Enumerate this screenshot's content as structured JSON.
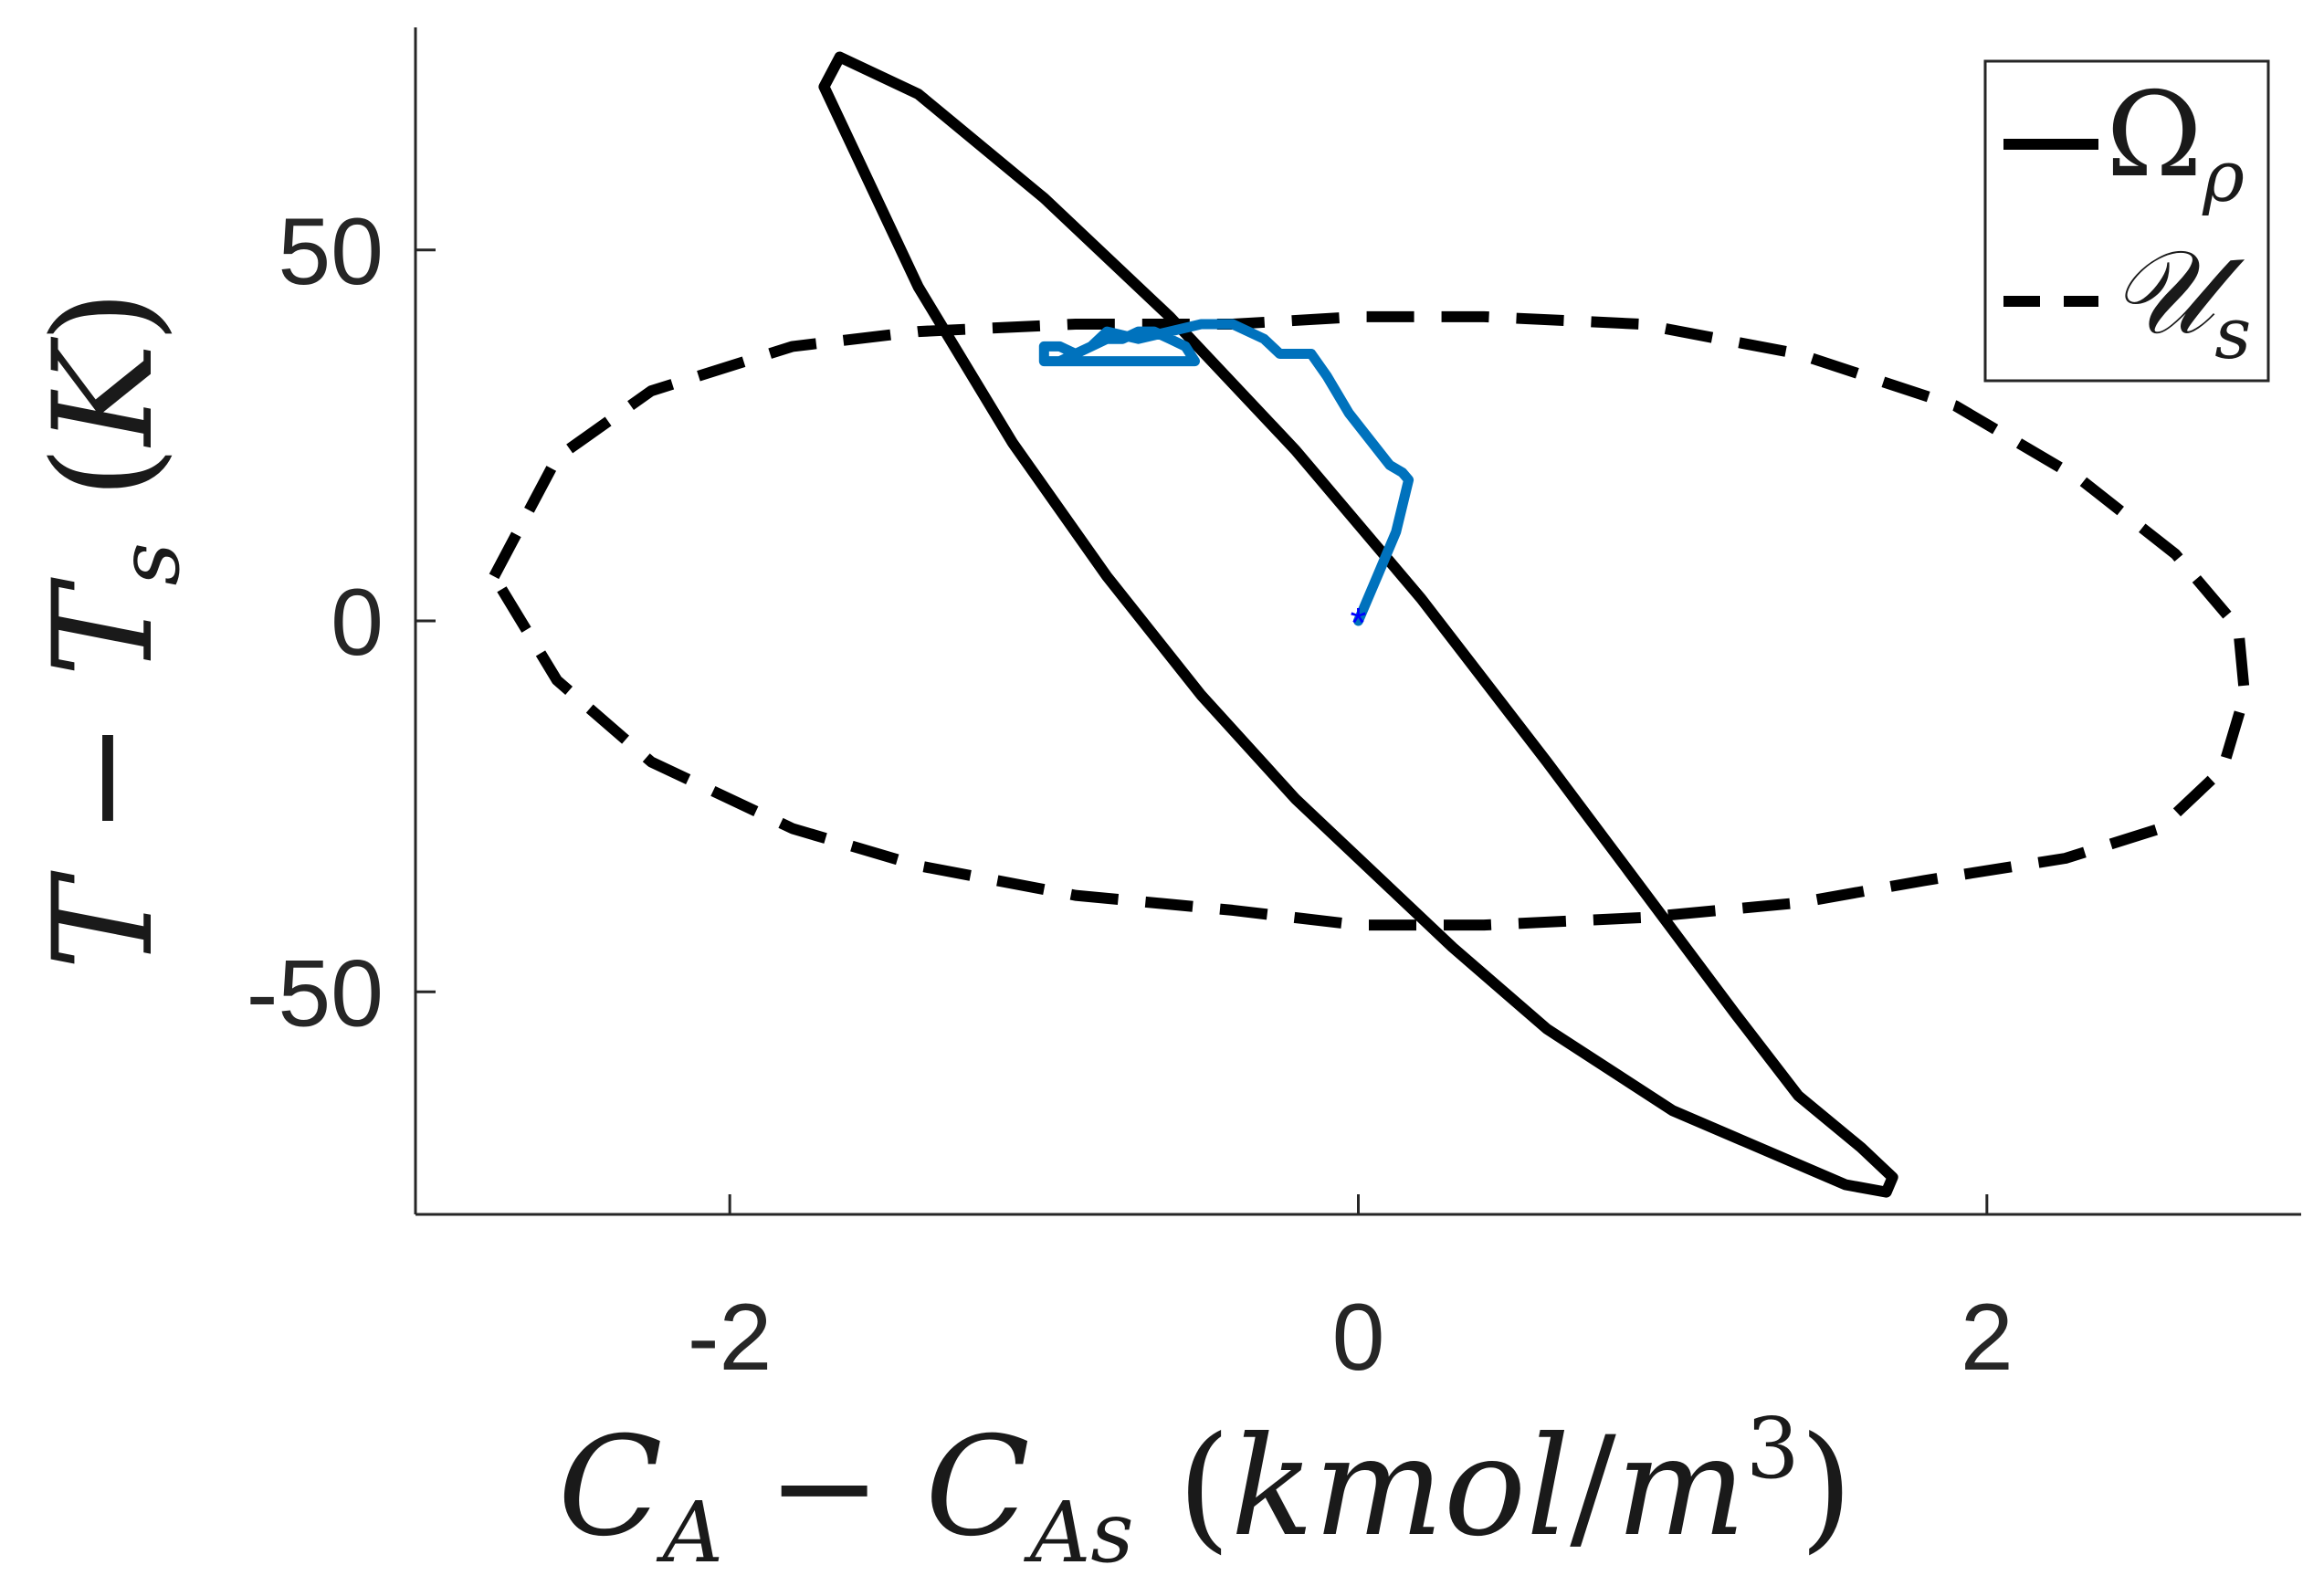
{
  "chart_data": {
    "type": "line",
    "title": "",
    "xlabel": "C_A − C_As (kmol/m^3)",
    "ylabel": "T − T_s (K)",
    "xlim": [
      -3.0,
      3.0
    ],
    "ylim": [
      -80,
      80
    ],
    "xticks": [
      -2,
      0,
      2
    ],
    "xtick_labels": [
      "-2",
      "0",
      "2"
    ],
    "yticks": [
      -50,
      0,
      50
    ],
    "ytick_labels": [
      "-50",
      "0",
      "50"
    ],
    "grid": false,
    "legend_position": "top-right",
    "legend": [
      {
        "label": "Ω_ρ",
        "style": "solid",
        "color": "#000000"
      },
      {
        "label": "𝒰_s",
        "style": "dashed",
        "color": "#000000"
      }
    ],
    "series": [
      {
        "name": "Ω_ρ",
        "style": "solid",
        "color": "#000000",
        "x": [
          1.55,
          1.0,
          0.6,
          0.3,
          0.1,
          -0.2,
          -0.5,
          -0.8,
          -1.1,
          -1.4,
          -1.6,
          -1.7,
          -1.65,
          -1.4,
          -1.0,
          -0.6,
          -0.2,
          0.2,
          0.6,
          0.9,
          1.2,
          1.4,
          1.6,
          1.7,
          1.68,
          1.55
        ],
        "y": [
          -76,
          -66,
          -55,
          -44,
          -36,
          -24,
          -10,
          6,
          24,
          45,
          63,
          72,
          76,
          71,
          57,
          41,
          23,
          3,
          -19,
          -36,
          -53,
          -64,
          -71,
          -75,
          -77,
          -76
        ]
      },
      {
        "name": "𝒰_s",
        "style": "dashed",
        "color": "#000000",
        "x": [
          -2.75,
          -2.55,
          -2.25,
          -1.8,
          -1.4,
          -0.9,
          -0.4,
          0.0,
          0.4,
          0.9,
          1.4,
          1.9,
          2.3,
          2.6,
          2.8,
          2.82,
          2.75,
          2.55,
          2.25,
          1.8,
          1.4,
          0.9,
          0.4,
          0.0,
          -0.4,
          -0.9,
          -1.4,
          -1.8,
          -2.25,
          -2.55,
          -2.75
        ],
        "y": [
          6,
          22,
          31,
          37,
          39,
          40,
          40,
          41,
          41,
          40,
          36,
          29,
          19,
          9,
          -1,
          -10,
          -20,
          -28,
          -32,
          -35,
          -38,
          -40,
          -41,
          -41,
          -39,
          -37,
          -33,
          -28,
          -19,
          -8,
          6
        ]
      },
      {
        "name": "",
        "style": "solid",
        "color": "#0072BD",
        "x": [
          0.0,
          0.06,
          0.12,
          0.16,
          0.14,
          0.1,
          -0.03,
          -0.1,
          -0.15,
          -0.25,
          -0.3,
          -0.4,
          -0.5,
          -0.6,
          -0.7,
          -0.8,
          -0.85,
          -0.9,
          -0.95,
          -1.0,
          -1.0,
          -0.95,
          -0.9,
          -0.85,
          -0.8,
          -0.75,
          -0.7,
          -0.65,
          -0.6,
          -0.55,
          -0.52,
          -0.58,
          -0.65,
          -0.7,
          -0.75,
          -0.8,
          -0.85,
          -0.9,
          -0.95
        ],
        "y": [
          0,
          6,
          12,
          19,
          20,
          21,
          28,
          33,
          36,
          36,
          38,
          40,
          40,
          39,
          38,
          39,
          37,
          36,
          35,
          35,
          37,
          37,
          36,
          37,
          38,
          38,
          39,
          39,
          38,
          37,
          35,
          35,
          35,
          35,
          35,
          35,
          35,
          35,
          35
        ]
      }
    ],
    "markers": [
      {
        "x": 0.0,
        "y": 0.0,
        "symbol": "*",
        "color": "#0000FF"
      }
    ]
  }
}
